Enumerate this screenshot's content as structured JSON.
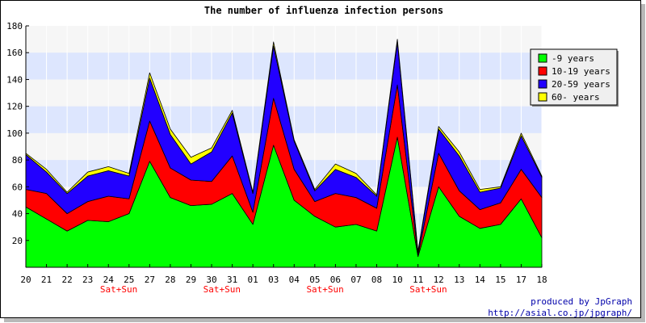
{
  "chart_data": {
    "type": "area",
    "stacked": true,
    "title": "The number of influenza infection persons",
    "xlabel": "",
    "ylabel": "",
    "ylim": [
      0,
      180
    ],
    "yticks": [
      20,
      40,
      60,
      80,
      100,
      120,
      140,
      160,
      180
    ],
    "grid": true,
    "legend_position": "top-right",
    "categories": [
      "20",
      "21",
      "22",
      "23",
      "24",
      "25",
      "27",
      "28",
      "29",
      "30",
      "31",
      "01",
      "03",
      "04",
      "05",
      "06",
      "07",
      "08",
      "10",
      "11",
      "12",
      "13",
      "14",
      "15",
      "17",
      "18"
    ],
    "weekend_label": "Sat+Sun",
    "weekend_after": [
      "24",
      "30",
      "05",
      "11"
    ],
    "series": [
      {
        "name": "-9 years",
        "color": "#00ff00",
        "values": [
          45,
          36,
          27,
          35,
          34,
          40,
          79,
          52,
          46,
          47,
          55,
          32,
          91,
          50,
          38,
          30,
          32,
          27,
          97,
          8,
          60,
          38,
          29,
          32,
          51,
          22
        ]
      },
      {
        "name": "10-19 years",
        "color": "#ff0000",
        "values": [
          13,
          19,
          13,
          14,
          19,
          11,
          30,
          22,
          19,
          17,
          28,
          9,
          35,
          23,
          11,
          25,
          20,
          17,
          39,
          1,
          25,
          19,
          14,
          16,
          22,
          30
        ]
      },
      {
        "name": "20-59 years",
        "color": "#2200ff",
        "values": [
          26,
          16,
          15,
          19,
          19,
          17,
          32,
          25,
          12,
          22,
          32,
          14,
          39,
          21,
          8,
          18,
          15,
          9,
          32,
          2,
          18,
          26,
          13,
          11,
          25,
          15
        ]
      },
      {
        "name": "60- years",
        "color": "#ffff00",
        "values": [
          1,
          2,
          1,
          3,
          3,
          2,
          4,
          4,
          5,
          3,
          2,
          1,
          3,
          1,
          1,
          4,
          3,
          1,
          2,
          1,
          2,
          3,
          2,
          1,
          2,
          1
        ]
      }
    ]
  },
  "credit": {
    "line1": "produced by JpGraph",
    "line2": "http://asial.co.jp/jpgraph/"
  }
}
